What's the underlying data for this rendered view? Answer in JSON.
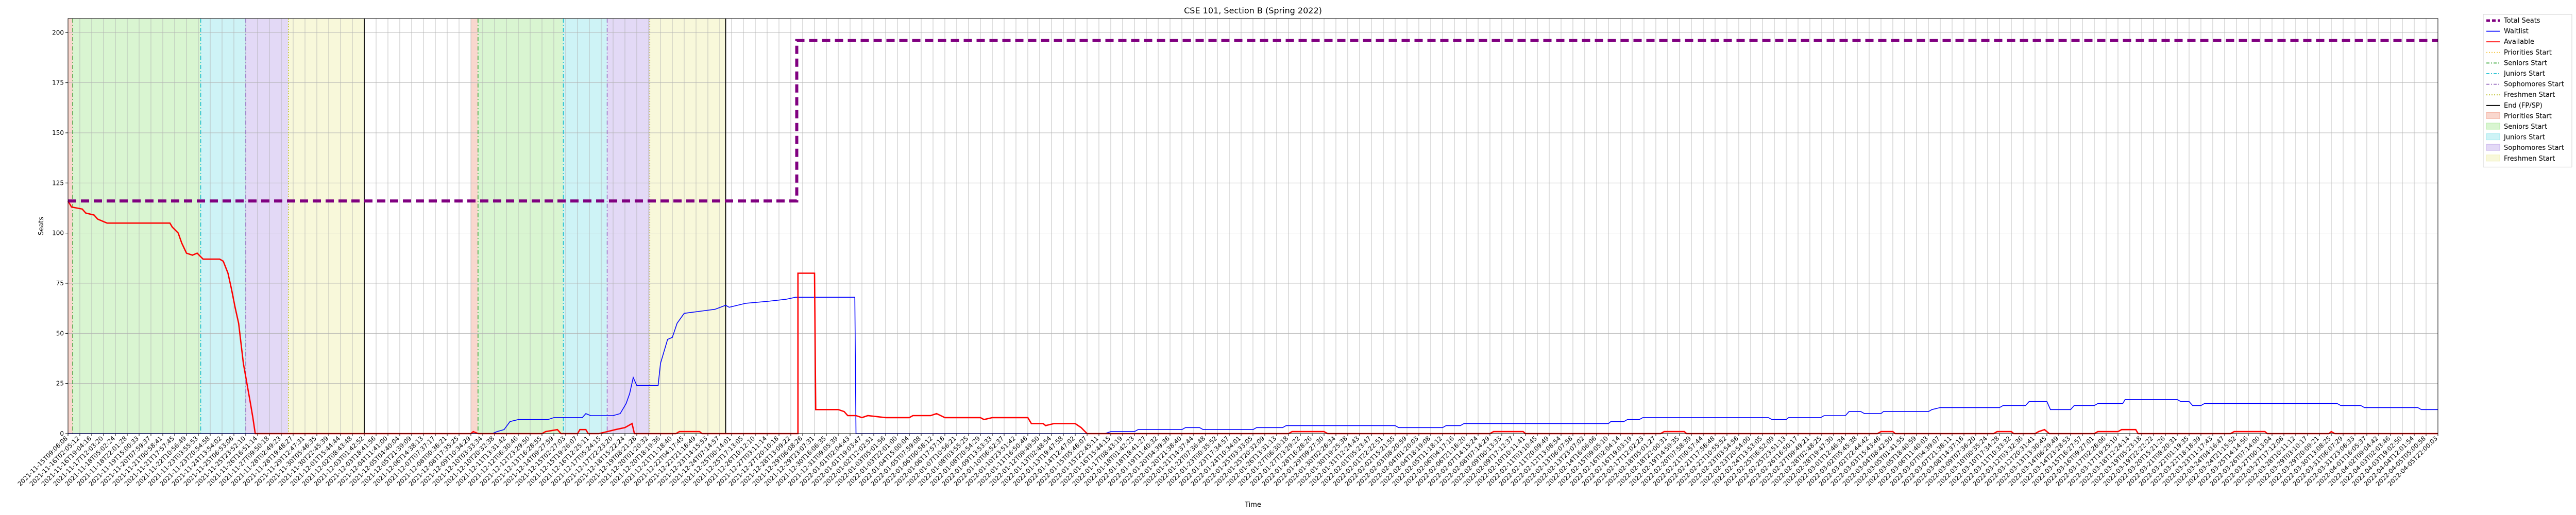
{
  "chart_data": {
    "type": "line",
    "title": "CSE 101, Section B (Spring 2022)",
    "xlabel": "Time",
    "ylabel": "Seats",
    "ylim": [
      0,
      207
    ],
    "yticks": [
      0,
      25,
      50,
      75,
      100,
      125,
      150,
      175,
      200
    ],
    "x_tick_count": 200,
    "x_tick_start_label": "2021-11-15T09:06:08",
    "x_tick_end_label": "2022-04-05T22:00:03",
    "x_tick_label_samples": [
      "2021-11-15T09:06:08",
      "2021-11-15T17:22:47",
      "2021-11-16T09:22:49",
      "2021-11-19T10:11:48",
      "2022-01-02T10:50:23",
      "2022-04-05T22:00:03"
    ],
    "grid": true,
    "legend_placement": "outside-right",
    "x_domain": [
      0,
      200
    ],
    "total_seats": {
      "name": "Total Seats",
      "color": "#800080",
      "points": [
        [
          0,
          116
        ],
        [
          61.5,
          116
        ],
        [
          61.5,
          196
        ],
        [
          200,
          196
        ]
      ]
    },
    "waitlist": {
      "name": "Waitlist",
      "color": "#0000ff",
      "points": [
        [
          0,
          0
        ],
        [
          35.8,
          0
        ],
        [
          36.2,
          1
        ],
        [
          36.8,
          2
        ],
        [
          37.3,
          6
        ],
        [
          38.0,
          7
        ],
        [
          40.5,
          7
        ],
        [
          41.0,
          8
        ],
        [
          43.4,
          8
        ],
        [
          43.7,
          10
        ],
        [
          44.1,
          9
        ],
        [
          46.0,
          9
        ],
        [
          46.6,
          10
        ],
        [
          47.1,
          15
        ],
        [
          47.4,
          20
        ],
        [
          47.7,
          28
        ],
        [
          48.0,
          24
        ],
        [
          49.8,
          24
        ],
        [
          50.0,
          35
        ],
        [
          50.6,
          47
        ],
        [
          51.0,
          48
        ],
        [
          51.4,
          55
        ],
        [
          52.0,
          60
        ],
        [
          53.3,
          61
        ],
        [
          54.6,
          62
        ],
        [
          55.5,
          64
        ],
        [
          55.8,
          63
        ],
        [
          57.2,
          65
        ],
        [
          59.1,
          66
        ],
        [
          60.6,
          67
        ],
        [
          61.4,
          68
        ],
        [
          63.0,
          68
        ],
        [
          63.1,
          68
        ],
        [
          66.4,
          68
        ],
        [
          66.5,
          0
        ],
        [
          87.5,
          0
        ],
        [
          88.0,
          1
        ],
        [
          90.0,
          1
        ],
        [
          90.3,
          2
        ],
        [
          94.0,
          2
        ],
        [
          94.3,
          3
        ],
        [
          95.5,
          3
        ],
        [
          95.8,
          2
        ],
        [
          100.0,
          2
        ],
        [
          100.3,
          3
        ],
        [
          102.5,
          3
        ],
        [
          102.8,
          4
        ],
        [
          112.0,
          4
        ],
        [
          112.3,
          3
        ],
        [
          116.0,
          3
        ],
        [
          116.3,
          4
        ],
        [
          117.5,
          4
        ],
        [
          117.8,
          5
        ],
        [
          130.0,
          5
        ],
        [
          130.2,
          6
        ],
        [
          131.3,
          6
        ],
        [
          131.6,
          7
        ],
        [
          132.6,
          7
        ],
        [
          132.9,
          8
        ],
        [
          143.5,
          8
        ],
        [
          143.8,
          7
        ],
        [
          145.0,
          7
        ],
        [
          145.2,
          8
        ],
        [
          147.9,
          8
        ],
        [
          148.2,
          9
        ],
        [
          150.0,
          9
        ],
        [
          150.3,
          11
        ],
        [
          151.3,
          11
        ],
        [
          151.6,
          10
        ],
        [
          153.0,
          10
        ],
        [
          153.2,
          11
        ],
        [
          157.0,
          11
        ],
        [
          157.3,
          12
        ],
        [
          158.0,
          13
        ],
        [
          163.0,
          13
        ],
        [
          163.3,
          14
        ],
        [
          165.2,
          14
        ],
        [
          165.5,
          16
        ],
        [
          167.0,
          16
        ],
        [
          167.3,
          12
        ],
        [
          169.0,
          12
        ],
        [
          169.3,
          14
        ],
        [
          171.0,
          14
        ],
        [
          171.3,
          15
        ],
        [
          173.4,
          15
        ],
        [
          173.6,
          17
        ],
        [
          178.0,
          17
        ],
        [
          178.3,
          16
        ],
        [
          179.0,
          16
        ],
        [
          179.3,
          14
        ],
        [
          180.0,
          14
        ],
        [
          180.3,
          15
        ],
        [
          191.5,
          15
        ],
        [
          191.8,
          14
        ],
        [
          193.5,
          14
        ],
        [
          193.8,
          13
        ],
        [
          198.3,
          13
        ],
        [
          198.6,
          12
        ],
        [
          200.0,
          12
        ]
      ]
    },
    "available": {
      "name": "Available",
      "color": "#ff0000",
      "points": [
        [
          0,
          116
        ],
        [
          0.3,
          113
        ],
        [
          1.2,
          112
        ],
        [
          1.5,
          110
        ],
        [
          2.2,
          109
        ],
        [
          2.5,
          107
        ],
        [
          3.3,
          105
        ],
        [
          6.1,
          105
        ],
        [
          6.3,
          105
        ],
        [
          8.6,
          105
        ],
        [
          8.8,
          103
        ],
        [
          9.3,
          100
        ],
        [
          9.6,
          95
        ],
        [
          10.0,
          90
        ],
        [
          10.5,
          89
        ],
        [
          10.9,
          90
        ],
        [
          11.4,
          87
        ],
        [
          12.8,
          87
        ],
        [
          13.1,
          86
        ],
        [
          13.5,
          80
        ],
        [
          13.8,
          72
        ],
        [
          14.1,
          63
        ],
        [
          14.4,
          55
        ],
        [
          14.6,
          45
        ],
        [
          14.8,
          35
        ],
        [
          15.1,
          25
        ],
        [
          15.4,
          15
        ],
        [
          15.6,
          8
        ],
        [
          15.8,
          0
        ],
        [
          34.0,
          0
        ],
        [
          34.2,
          1
        ],
        [
          34.6,
          0
        ],
        [
          40.0,
          0
        ],
        [
          40.3,
          1
        ],
        [
          41.3,
          2
        ],
        [
          41.6,
          0
        ],
        [
          43.0,
          0
        ],
        [
          43.2,
          2
        ],
        [
          43.7,
          2
        ],
        [
          43.9,
          0
        ],
        [
          44.8,
          0
        ],
        [
          45.5,
          1
        ],
        [
          46.2,
          2
        ],
        [
          47.0,
          3
        ],
        [
          47.6,
          5
        ],
        [
          47.8,
          0
        ],
        [
          51.3,
          0
        ],
        [
          51.6,
          1
        ],
        [
          53.3,
          1
        ],
        [
          53.5,
          0
        ],
        [
          61.6,
          0
        ],
        [
          61.6,
          80
        ],
        [
          63.0,
          80
        ],
        [
          63.1,
          12
        ],
        [
          65.0,
          12
        ],
        [
          65.5,
          11
        ],
        [
          65.8,
          9
        ],
        [
          66.5,
          9
        ],
        [
          67.0,
          8
        ],
        [
          67.5,
          9
        ],
        [
          69.0,
          8
        ],
        [
          71.0,
          8
        ],
        [
          71.3,
          9
        ],
        [
          72.8,
          9
        ],
        [
          73.3,
          10
        ],
        [
          74.0,
          8
        ],
        [
          77.0,
          8
        ],
        [
          77.3,
          7
        ],
        [
          78.0,
          8
        ],
        [
          81.0,
          8
        ],
        [
          81.3,
          5
        ],
        [
          82.3,
          5
        ],
        [
          82.5,
          4
        ],
        [
          83.2,
          5
        ],
        [
          85.0,
          5
        ],
        [
          85.5,
          3
        ],
        [
          86.0,
          0
        ],
        [
          103.0,
          0
        ],
        [
          103.3,
          1
        ],
        [
          106.0,
          1
        ],
        [
          106.3,
          0
        ],
        [
          120.0,
          0
        ],
        [
          120.3,
          1
        ],
        [
          122.8,
          1
        ],
        [
          123.0,
          0
        ],
        [
          134.4,
          0
        ],
        [
          134.7,
          1
        ],
        [
          136.4,
          1
        ],
        [
          136.6,
          0
        ],
        [
          152.7,
          0
        ],
        [
          153.0,
          1
        ],
        [
          154.0,
          1
        ],
        [
          154.2,
          0
        ],
        [
          162.5,
          0
        ],
        [
          162.8,
          1
        ],
        [
          164.0,
          1
        ],
        [
          164.2,
          0
        ],
        [
          166.0,
          0
        ],
        [
          166.3,
          1
        ],
        [
          166.8,
          2
        ],
        [
          167.2,
          0
        ],
        [
          171.0,
          0
        ],
        [
          171.3,
          1
        ],
        [
          173.0,
          1
        ],
        [
          173.3,
          2
        ],
        [
          174.5,
          2
        ],
        [
          174.7,
          0
        ],
        [
          182.5,
          0
        ],
        [
          182.8,
          1
        ],
        [
          185.4,
          1
        ],
        [
          185.6,
          0
        ],
        [
          190.8,
          0
        ],
        [
          191.0,
          1
        ],
        [
          191.3,
          0
        ],
        [
          200.0,
          0
        ]
      ]
    },
    "phases": [
      {
        "start": 0.0,
        "end": 0.4,
        "kind": "priorities"
      },
      {
        "start": 0.4,
        "end": 11.2,
        "kind": "seniors"
      },
      {
        "start": 11.2,
        "end": 15.0,
        "kind": "juniors"
      },
      {
        "start": 15.0,
        "end": 18.6,
        "kind": "sophomores"
      },
      {
        "start": 18.6,
        "end": 25.0,
        "kind": "freshmen"
      },
      {
        "start": 34.0,
        "end": 34.6,
        "kind": "priorities"
      },
      {
        "start": 34.6,
        "end": 41.8,
        "kind": "seniors"
      },
      {
        "start": 41.8,
        "end": 45.5,
        "kind": "juniors"
      },
      {
        "start": 45.5,
        "end": 49.1,
        "kind": "sophomores"
      },
      {
        "start": 49.1,
        "end": 55.5,
        "kind": "freshmen"
      }
    ],
    "markers": [
      {
        "x": 0.4,
        "kind": "seniors"
      },
      {
        "x": 11.2,
        "kind": "juniors"
      },
      {
        "x": 15.0,
        "kind": "sophomores"
      },
      {
        "x": 18.6,
        "kind": "freshmen"
      },
      {
        "x": 25.0,
        "kind": "end"
      },
      {
        "x": 34.6,
        "kind": "seniors"
      },
      {
        "x": 41.8,
        "kind": "juniors"
      },
      {
        "x": 45.5,
        "kind": "sophomores"
      },
      {
        "x": 49.1,
        "kind": "freshmen"
      },
      {
        "x": 55.5,
        "kind": "end"
      }
    ],
    "legend": [
      {
        "label": "Total Seats",
        "style": "dash-thick",
        "color": "#800080"
      },
      {
        "label": "Waitlist",
        "style": "line",
        "color": "#0000ff"
      },
      {
        "label": "Available",
        "style": "line",
        "color": "#ff0000"
      },
      {
        "label": "Priorities Start",
        "style": "dotted",
        "color": "#f5c542"
      },
      {
        "label": "Seniors Start",
        "style": "dashdot",
        "color": "#2ca02c"
      },
      {
        "label": "Juniors Start",
        "style": "dashdot",
        "color": "#17becf"
      },
      {
        "label": "Sophomores Start",
        "style": "dashdot",
        "color": "#9467bd"
      },
      {
        "label": "Freshmen Start",
        "style": "dotted",
        "color": "#bcbd22"
      },
      {
        "label": "End (FP/SP)",
        "style": "line",
        "color": "#000000"
      },
      {
        "label": "Priorities Start",
        "style": "patch",
        "color": "#f4b6a6"
      },
      {
        "label": "Seniors Start",
        "style": "patch",
        "color": "#b9edab"
      },
      {
        "label": "Juniors Start",
        "style": "patch",
        "color": "#a6e9ef"
      },
      {
        "label": "Sophomores Start",
        "style": "patch",
        "color": "#ccb9ee"
      },
      {
        "label": "Freshmen Start",
        "style": "patch",
        "color": "#f2f2bb"
      }
    ],
    "colors": {
      "priorities": "#f4b6a6",
      "seniors": "#b9edab",
      "juniors": "#a6e9ef",
      "sophomores": "#ccb9ee",
      "freshmen": "#f2f2bb",
      "seniors_line": "#2ca02c",
      "juniors_line": "#17becf",
      "sophomores_line": "#9467bd",
      "freshmen_line": "#bcbd22",
      "end_line": "#000000"
    }
  }
}
